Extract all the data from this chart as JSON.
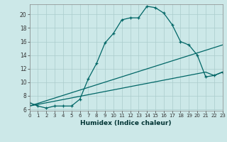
{
  "title": "",
  "xlabel": "Humidex (Indice chaleur)",
  "ylabel": "",
  "bg_color": "#cce8e8",
  "line_color": "#006666",
  "grid_color": "#aacccc",
  "series": [
    {
      "x": [
        0,
        1,
        2,
        3,
        4,
        5,
        6,
        7,
        8,
        9,
        10,
        11,
        12,
        13,
        14,
        15,
        16,
        17,
        18,
        19,
        20,
        21,
        22,
        23
      ],
      "y": [
        7.0,
        6.5,
        6.2,
        6.5,
        6.5,
        6.5,
        7.5,
        10.5,
        12.8,
        15.8,
        17.2,
        19.2,
        19.5,
        19.5,
        21.2,
        21.0,
        20.2,
        18.5,
        16.0,
        15.5,
        14.0,
        10.8,
        11.0,
        11.5
      ],
      "marker": "+"
    },
    {
      "x": [
        0,
        23
      ],
      "y": [
        6.5,
        15.5
      ],
      "marker": null
    },
    {
      "x": [
        0,
        21,
        22,
        23
      ],
      "y": [
        6.5,
        11.5,
        11.0,
        11.5
      ],
      "marker": null
    }
  ],
  "xlim": [
    0,
    23
  ],
  "ylim": [
    5.8,
    21.5
  ],
  "yticks": [
    6,
    8,
    10,
    12,
    14,
    16,
    18,
    20
  ],
  "xticks": [
    0,
    1,
    2,
    3,
    4,
    5,
    6,
    7,
    8,
    9,
    10,
    11,
    12,
    13,
    14,
    15,
    16,
    17,
    18,
    19,
    20,
    21,
    22,
    23
  ]
}
